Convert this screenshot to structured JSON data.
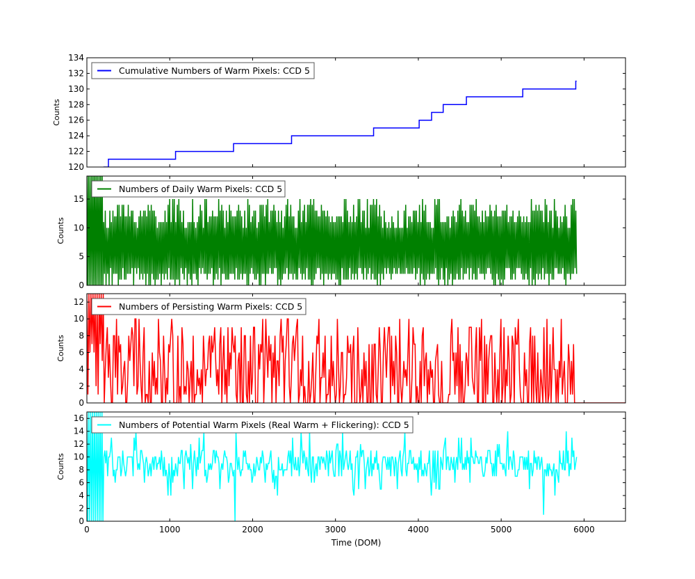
{
  "chart_data": [
    {
      "type": "line",
      "legend": "Cumulative Numbers of Warm Pixels: CCD 5",
      "legend_position": "top-left",
      "ylabel": "Counts",
      "color": "#0000ff",
      "xlim": [
        0,
        6500
      ],
      "ylim": [
        120,
        134
      ],
      "yticks": [
        120,
        122,
        124,
        126,
        128,
        130,
        132,
        134
      ],
      "x": [
        200,
        260,
        260,
        1070,
        1070,
        1770,
        1770,
        2470,
        2470,
        3460,
        3460,
        4010,
        4010,
        4160,
        4160,
        4300,
        4300,
        4580,
        4580,
        5260,
        5260,
        5900,
        5900,
        5910
      ],
      "values": [
        120,
        120,
        121,
        121,
        122,
        122,
        123,
        123,
        124,
        124,
        125,
        125,
        126,
        126,
        127,
        127,
        128,
        128,
        129,
        129,
        130,
        130,
        131,
        131
      ]
    },
    {
      "type": "line",
      "legend": "Numbers of Daily Warm Pixels: CCD 5",
      "legend_position": "top-left",
      "ylabel": "Counts",
      "color": "#008000",
      "xlim": [
        0,
        6500
      ],
      "ylim": [
        0,
        19
      ],
      "yticks": [
        0,
        5,
        10,
        15
      ],
      "x_range": [
        0,
        5910
      ],
      "samples": 640,
      "typical_range": [
        10,
        14
      ],
      "max_value": 19
    },
    {
      "type": "line",
      "legend": "Numbers of Persisting Warm Pixels: CCD 5",
      "legend_position": "top-left",
      "ylabel": "Counts",
      "color": "#ff0000",
      "xlim": [
        0,
        6500
      ],
      "ylim": [
        0,
        13
      ],
      "yticks": [
        0,
        2,
        4,
        6,
        8,
        10,
        12
      ],
      "x_range": [
        0,
        5910
      ],
      "samples": 480,
      "typical_range": [
        0,
        10
      ],
      "max_value": 13
    },
    {
      "type": "line",
      "legend": "Numbers of Potential Warm Pixels (Real Warm + Flickering): CCD 5",
      "legend_position": "top-left",
      "ylabel": "Counts",
      "xlabel": "Time (DOM)",
      "color": "#00ffff",
      "xlim": [
        0,
        6500
      ],
      "ylim": [
        0,
        17
      ],
      "yticks": [
        0,
        2,
        4,
        6,
        8,
        10,
        12,
        14,
        16
      ],
      "xticks": [
        0,
        1000,
        2000,
        3000,
        4000,
        5000,
        6000
      ],
      "x_range": [
        0,
        5910
      ],
      "samples": 520,
      "typical_range": [
        7,
        11
      ],
      "max_value": 17
    }
  ]
}
